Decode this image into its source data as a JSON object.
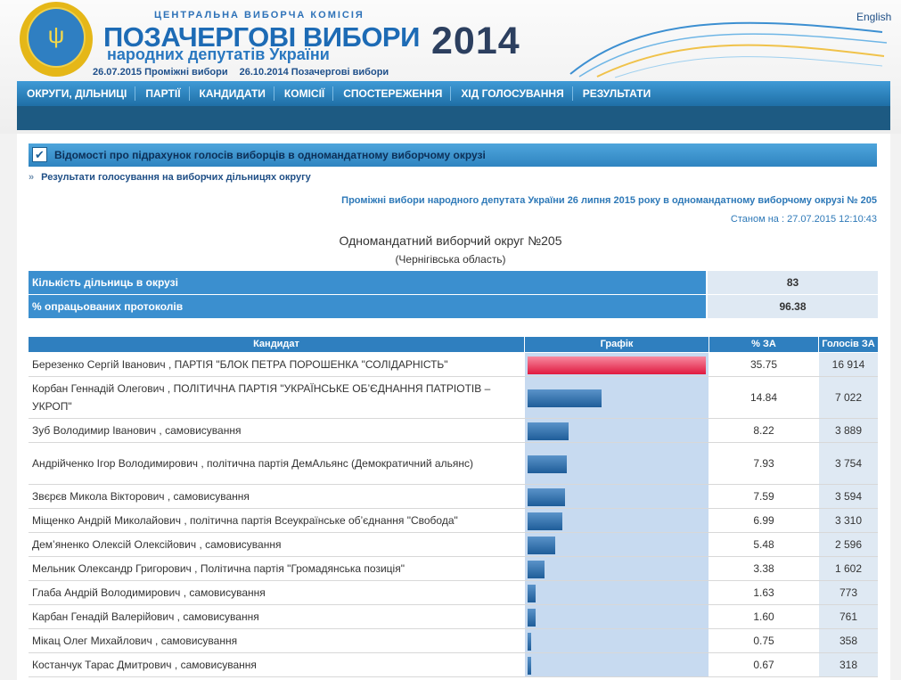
{
  "header": {
    "org": "ЦЕНТРАЛЬНА ВИБОРЧА КОМІСІЯ",
    "title": "ПОЗАЧЕРГОВІ ВИБОРИ",
    "subtitle": "народних депутатів України",
    "year": "2014",
    "date1": "26.07.2015 Проміжні вибори",
    "date2": "26.10.2014 Позачергові вибори",
    "lang": "English"
  },
  "nav": [
    "ОКРУГИ, ДІЛЬНИЦІ",
    "ПАРТІЇ",
    "КАНДИДАТИ",
    "КОМІСІЇ",
    "СПОСТЕРЕЖЕННЯ",
    "ХІД ГОЛОСУВАННЯ",
    "РЕЗУЛЬТАТИ"
  ],
  "section": {
    "title": "Відомості про підрахунок голосів виборців в одномандатному виборчому окрузі",
    "link": "Результати голосування на виборчих дільницях округу",
    "arrow": "»"
  },
  "heading": "Проміжні вибори народного депутата України 26 липня 2015 року в одномандатному виборчому окрузі № 205",
  "stamp": "Станом на : 27.07.2015 12:10:43",
  "okrug": "Одномандатний виборчий округ №205",
  "oblast": "(Чернігівська область)",
  "summary": [
    {
      "label": "Кількість дільниць в окрузі",
      "value": "83"
    },
    {
      "label": "% опрацьованих протоколів",
      "value": "96.38"
    }
  ],
  "table": {
    "headers": [
      "Кандидат",
      "Графік",
      "% ЗА",
      "Голосів ЗА"
    ],
    "rows": [
      {
        "name": "Березенко Сергій Іванович , ПАРТІЯ \"БЛОК ПЕТРА ПОРОШЕНКА \"СОЛІДАРНІСТЬ\"",
        "pct": "35.75",
        "votes": "16 914"
      },
      {
        "name": "Корбан Геннадій Олегович , ПОЛІТИЧНА ПАРТІЯ \"УКРАЇНСЬКЕ ОБ’ЄДНАННЯ ПАТРІОТІВ – УКРОП\"",
        "pct": "14.84",
        "votes": "7 022"
      },
      {
        "name": "Зуб Володимир Іванович , самовисування",
        "pct": "8.22",
        "votes": "3 889"
      },
      {
        "name": "Андрійченко Ігор Володимирович , політична партія ДемАльянс (Демократичний альянс)",
        "pct": "7.93",
        "votes": "3 754"
      },
      {
        "name": "Звєрєв Микола Вікторович , самовисування",
        "pct": "7.59",
        "votes": "3 594"
      },
      {
        "name": "Міщенко Андрій Миколайович , політична партія Всеукраїнське об’єднання \"Свобода\"",
        "pct": "6.99",
        "votes": "3 310"
      },
      {
        "name": "Дем’яненко Олексій Олексійович , самовисування",
        "pct": "5.48",
        "votes": "2 596"
      },
      {
        "name": "Мельник Олександр Григорович , Політична партія \"Громадянська позиція\"",
        "pct": "3.38",
        "votes": "1 602"
      },
      {
        "name": "Глаба Андрій Володимирович , самовисування",
        "pct": "1.63",
        "votes": "773"
      },
      {
        "name": "Карбан Генадій Валерійович , самовисування",
        "pct": "1.60",
        "votes": "761"
      },
      {
        "name": "Мікац Олег Михайлович , самовисування",
        "pct": "0.75",
        "votes": "358"
      },
      {
        "name": "Костанчук Тарас Дмитрович , самовисування",
        "pct": "0.67",
        "votes": "318"
      }
    ]
  }
}
